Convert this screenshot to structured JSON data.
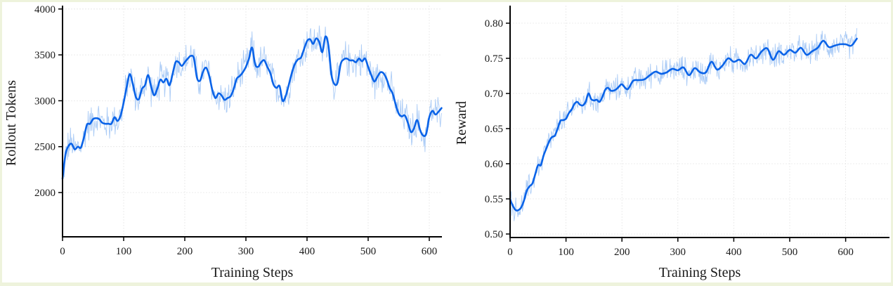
{
  "chart_data": [
    {
      "type": "line",
      "title": "",
      "xlabel": "Training Steps",
      "ylabel": "Rollout Tokens",
      "xlim": [
        0,
        620
      ],
      "ylim": [
        1500,
        4050
      ],
      "xticks": [
        0,
        100,
        200,
        300,
        400,
        500,
        600
      ],
      "yticks": [
        2000,
        2500,
        3000,
        3500,
        4000
      ],
      "grid": true,
      "legend": null,
      "series": [
        {
          "name": "Rollout Tokens (smoothed)",
          "color": "#0a63e8",
          "x": [
            0,
            5,
            10,
            15,
            20,
            25,
            30,
            35,
            40,
            45,
            50,
            55,
            60,
            65,
            70,
            75,
            80,
            85,
            90,
            95,
            100,
            105,
            110,
            115,
            120,
            125,
            130,
            135,
            140,
            145,
            150,
            155,
            160,
            165,
            170,
            175,
            180,
            185,
            190,
            195,
            200,
            205,
            210,
            215,
            220,
            225,
            230,
            235,
            240,
            245,
            250,
            255,
            260,
            265,
            270,
            275,
            280,
            285,
            290,
            295,
            300,
            305,
            310,
            315,
            320,
            325,
            330,
            335,
            340,
            345,
            350,
            355,
            360,
            365,
            370,
            375,
            380,
            385,
            390,
            395,
            400,
            405,
            410,
            415,
            420,
            425,
            430,
            435,
            440,
            445,
            450,
            455,
            460,
            465,
            470,
            475,
            480,
            485,
            490,
            495,
            500,
            505,
            510,
            515,
            520,
            525,
            530,
            535,
            540,
            545,
            550,
            555,
            560,
            565,
            570,
            575,
            580,
            585,
            590,
            595,
            600,
            605,
            610,
            615,
            620
          ],
          "values": [
            2150,
            2420,
            2510,
            2530,
            2470,
            2500,
            2490,
            2600,
            2740,
            2750,
            2800,
            2810,
            2800,
            2760,
            2750,
            2750,
            2750,
            2820,
            2780,
            2840,
            2980,
            3150,
            3290,
            3180,
            3040,
            3020,
            3130,
            3170,
            3280,
            3150,
            3060,
            3130,
            3230,
            3200,
            3240,
            3170,
            3290,
            3420,
            3420,
            3380,
            3420,
            3460,
            3490,
            3460,
            3250,
            3220,
            3320,
            3360,
            3270,
            3120,
            3030,
            3080,
            3060,
            3010,
            3030,
            3050,
            3130,
            3240,
            3270,
            3310,
            3370,
            3460,
            3580,
            3400,
            3370,
            3420,
            3440,
            3370,
            3300,
            3180,
            3140,
            3160,
            3000,
            3050,
            3170,
            3300,
            3400,
            3450,
            3470,
            3560,
            3650,
            3670,
            3620,
            3680,
            3640,
            3530,
            3700,
            3600,
            3280,
            3180,
            3200,
            3400,
            3450,
            3460,
            3440,
            3440,
            3420,
            3460,
            3430,
            3460,
            3370,
            3280,
            3210,
            3260,
            3310,
            3300,
            3240,
            3140,
            3080,
            2960,
            2860,
            2830,
            2840,
            2760,
            2660,
            2700,
            2790,
            2680,
            2620,
            2640,
            2820,
            2890,
            2850,
            2880,
            2920
          ]
        },
        {
          "name": "Rollout Tokens (raw)",
          "color": "#9ec3f5",
          "noise_amplitude": 160
        }
      ]
    },
    {
      "type": "line",
      "title": "",
      "xlabel": "Training Steps",
      "ylabel": "Reward",
      "xlim": [
        0,
        622
      ],
      "ylim": [
        0.495,
        0.825
      ],
      "xticks": [
        0,
        100,
        200,
        300,
        400,
        500,
        600
      ],
      "yticks": [
        0.5,
        0.55,
        0.6,
        0.65,
        0.7,
        0.75,
        0.8
      ],
      "grid": true,
      "legend": null,
      "series": [
        {
          "name": "Reward (smoothed)",
          "color": "#0a63e8",
          "x": [
            0,
            5,
            10,
            15,
            20,
            25,
            30,
            35,
            40,
            45,
            50,
            55,
            60,
            65,
            70,
            75,
            80,
            85,
            90,
            95,
            100,
            105,
            110,
            115,
            120,
            125,
            130,
            135,
            140,
            145,
            150,
            155,
            160,
            165,
            170,
            175,
            180,
            185,
            190,
            195,
            200,
            210,
            220,
            230,
            240,
            250,
            260,
            270,
            280,
            290,
            300,
            310,
            320,
            330,
            340,
            350,
            360,
            370,
            380,
            390,
            400,
            410,
            420,
            430,
            440,
            450,
            460,
            470,
            480,
            490,
            500,
            510,
            520,
            530,
            540,
            550,
            560,
            570,
            580,
            590,
            600,
            610,
            620
          ],
          "values": [
            0.549,
            0.54,
            0.534,
            0.534,
            0.538,
            0.548,
            0.562,
            0.568,
            0.572,
            0.585,
            0.598,
            0.598,
            0.612,
            0.622,
            0.632,
            0.638,
            0.64,
            0.65,
            0.661,
            0.662,
            0.664,
            0.672,
            0.677,
            0.685,
            0.688,
            0.684,
            0.683,
            0.688,
            0.7,
            0.692,
            0.69,
            0.691,
            0.688,
            0.695,
            0.705,
            0.708,
            0.704,
            0.704,
            0.706,
            0.71,
            0.713,
            0.706,
            0.718,
            0.719,
            0.72,
            0.726,
            0.731,
            0.728,
            0.73,
            0.735,
            0.733,
            0.737,
            0.726,
            0.736,
            0.73,
            0.73,
            0.745,
            0.734,
            0.74,
            0.75,
            0.745,
            0.748,
            0.742,
            0.755,
            0.75,
            0.76,
            0.764,
            0.748,
            0.76,
            0.755,
            0.762,
            0.758,
            0.765,
            0.755,
            0.76,
            0.765,
            0.775,
            0.766,
            0.768,
            0.77,
            0.77,
            0.768,
            0.778
          ]
        },
        {
          "name": "Reward (raw)",
          "color": "#9ec3f5",
          "noise_amplitude": 0.015
        }
      ]
    }
  ],
  "charts": {
    "left": {
      "xlabel": "Training Steps",
      "ylabel": "Rollout Tokens",
      "yticks": [
        "2000",
        "2500",
        "3000",
        "3500",
        "4000"
      ],
      "xticks": [
        "0",
        "100",
        "200",
        "300",
        "400",
        "500",
        "600"
      ]
    },
    "right": {
      "xlabel": "Training Steps",
      "ylabel": "Reward",
      "yticks": [
        "0.50",
        "0.55",
        "0.60",
        "0.65",
        "0.70",
        "0.75",
        "0.80"
      ],
      "xticks": [
        "0",
        "100",
        "200",
        "300",
        "400",
        "500",
        "600"
      ]
    }
  },
  "colors": {
    "smooth_line": "#0a63e8",
    "raw_line": "#9ec3f5",
    "background": "#ffffff",
    "page_border": "#eef3dc"
  }
}
